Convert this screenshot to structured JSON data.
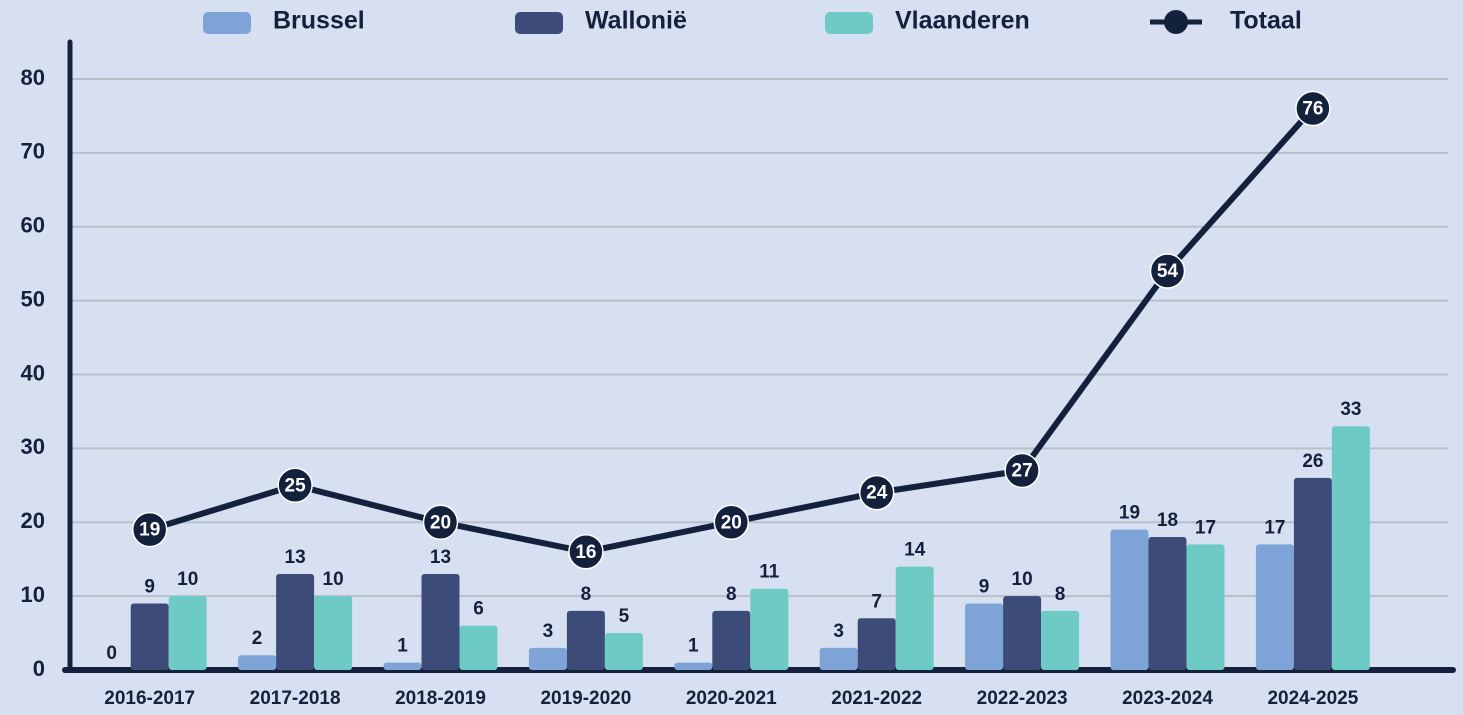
{
  "chart_data": {
    "type": "bar-line",
    "categories": [
      "2016-2017",
      "2017-2018",
      "2018-2019",
      "2019-2020",
      "2020-2021",
      "2021-2022",
      "2022-2023",
      "2023-2024",
      "2024-2025"
    ],
    "series": [
      {
        "name": "Brussel",
        "type": "bar",
        "color": "#7ea3d6",
        "values": [
          0,
          2,
          1,
          3,
          1,
          3,
          9,
          19,
          17
        ]
      },
      {
        "name": "Wallonië",
        "type": "bar",
        "color": "#3d4b78",
        "values": [
          9,
          13,
          13,
          8,
          8,
          7,
          10,
          18,
          26
        ]
      },
      {
        "name": "Vlaanderen",
        "type": "bar",
        "color": "#6ecac5",
        "values": [
          10,
          10,
          6,
          5,
          11,
          14,
          8,
          17,
          33
        ]
      },
      {
        "name": "Totaal",
        "type": "line",
        "color": "#14213d",
        "values": [
          19,
          25,
          20,
          16,
          20,
          24,
          27,
          54,
          76
        ]
      }
    ],
    "ylim": [
      0,
      85
    ],
    "yticks": [
      0,
      10,
      20,
      30,
      40,
      50,
      60,
      70,
      80
    ],
    "grid": true,
    "legend": "top"
  }
}
